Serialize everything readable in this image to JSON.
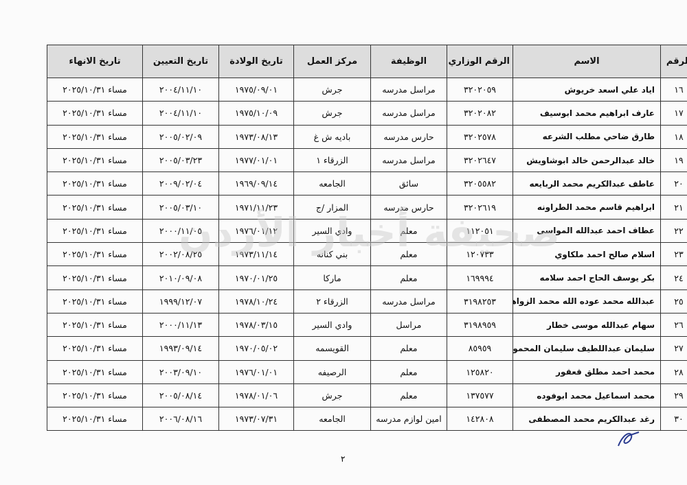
{
  "table": {
    "headers": [
      "الرقم",
      "الاسم",
      "الرقم الوزاري",
      "الوظيفة",
      "مركز العمل",
      "تاريخ الولادة",
      "تاريخ التعيين",
      "تاريخ الانهاء"
    ],
    "rows": [
      [
        "١٦",
        "اياد علي اسعد خريوش",
        "٣٢٠٢٠٥٩",
        "مراسل مدرسه",
        "جرش",
        "١٩٧٥/٠٩/٠١",
        "٢٠٠٤/١١/١٠",
        "مساء ٢٠٢٥/١٠/٣١"
      ],
      [
        "١٧",
        "عارف ابراهيم محمد ابوسيف",
        "٣٢٠٢٠٨٢",
        "مراسل مدرسه",
        "جرش",
        "١٩٧٥/١٠/٠٩",
        "٢٠٠٤/١١/١٠",
        "مساء ٢٠٢٥/١٠/٣١"
      ],
      [
        "١٨",
        "طارق ضاحي مطلب الشرعه",
        "٣٢٠٢٥٧٨",
        "حارس مدرسه",
        "باديه ش غ",
        "١٩٧٣/٠٨/١٣",
        "٢٠٠٥/٠٢/٠٩",
        "مساء ٢٠٢٥/١٠/٣١"
      ],
      [
        "١٩",
        "خالد عبدالرحمن خالد ابوشاويش",
        "٣٢٠٢٦٤٧",
        "مراسل مدرسه",
        "الزرقاء ١",
        "١٩٧٧/٠١/٠١",
        "٢٠٠٥/٠٣/٢٣",
        "مساء ٢٠٢٥/١٠/٣١"
      ],
      [
        "٢٠",
        "عاطف عبدالكريم محمد الربايعه",
        "٣٢٠٥٥٨٢",
        "سائق",
        "الجامعه",
        "١٩٦٩/٠٩/١٤",
        "٢٠٠٩/٠٢/٠٤",
        "مساء ٢٠٢٥/١٠/٣١"
      ],
      [
        "٢١",
        "ابراهيم قاسم محمد الطراونه",
        "٣٢٠٢٦١٩",
        "حارس مدرسه",
        "المزار /ج",
        "١٩٧١/١١/٢٣",
        "٢٠٠٥/٠٣/١٠",
        "مساء ٢٠٢٥/١٠/٣١"
      ],
      [
        "٢٢",
        "عطاف احمد عبدالله المواسى",
        "١١٢٠٥١",
        "معلم",
        "وادي السير",
        "١٩٧٦/٠١/١٢",
        "٢٠٠٠/١١/٠٥",
        "مساء ٢٠٢٥/١٠/٣١"
      ],
      [
        "٢٣",
        "اسلام صالح احمد ملكاوي",
        "١٢٠٧٣٣",
        "معلم",
        "بني كنانه",
        "١٩٧٣/١١/١٤",
        "٢٠٠٢/٠٨/٢٥",
        "مساء ٢٠٢٥/١٠/٣١"
      ],
      [
        "٢٤",
        "بكر يوسف الحاج احمد سلامه",
        "١٦٩٩٩٤",
        "معلم",
        "ماركا",
        "١٩٧٠/٠١/٢٥",
        "٢٠١٠/٠٩/٠٨",
        "مساء ٢٠٢٥/١٠/٣١"
      ],
      [
        "٢٥",
        "عبدالله محمد عوده الله محمد الزواهره",
        "٣١٩٨٢٥٣",
        "مراسل مدرسه",
        "الزرقاء ٢",
        "١٩٧٨/١٠/٢٤",
        "١٩٩٩/١٢/٠٧",
        "مساء ٢٠٢٥/١٠/٣١"
      ],
      [
        "٢٦",
        "سهام عبدالله موسى خطار",
        "٣١٩٨٩٥٩",
        "مراسل",
        "وادي السير",
        "١٩٧٨/٠٣/١٥",
        "٢٠٠٠/١١/١٣",
        "مساء ٢٠٢٥/١٠/٣١"
      ],
      [
        "٢٧",
        "سليمان عبداللطيف سليمان المحمود",
        "٨٥٩٥٩",
        "معلم",
        "القويسمه",
        "١٩٧٠/٠٥/٠٢",
        "١٩٩٣/٠٩/١٤",
        "مساء ٢٠٢٥/١٠/٣١"
      ],
      [
        "٢٨",
        "محمد احمد مطلق قعقور",
        "١٢٥٨٢٠",
        "معلم",
        "الرصيفه",
        "١٩٧٦/٠١/٠١",
        "٢٠٠٣/٠٩/١٠",
        "مساء ٢٠٢٥/١٠/٣١"
      ],
      [
        "٢٩",
        "محمد اسماعيل محمد ابوفوده",
        "١٣٧٥٧٧",
        "معلم",
        "جرش",
        "١٩٧٨/٠١/٠٦",
        "٢٠٠٥/٠٨/١٤",
        "مساء ٢٠٢٥/١٠/٣١"
      ],
      [
        "٣٠",
        "رغد عبدالكريم محمد المصطفى",
        "١٤٢٨٠٨",
        "امين لوازم مدرسه",
        "الجامعه",
        "١٩٧٣/٠٧/٣١",
        "٢٠٠٦/٠٨/١٦",
        "مساء ٢٠٢٥/١٠/٣١"
      ]
    ]
  },
  "page_number": "٢",
  "watermark": "صحيفة أخبار الأردن"
}
